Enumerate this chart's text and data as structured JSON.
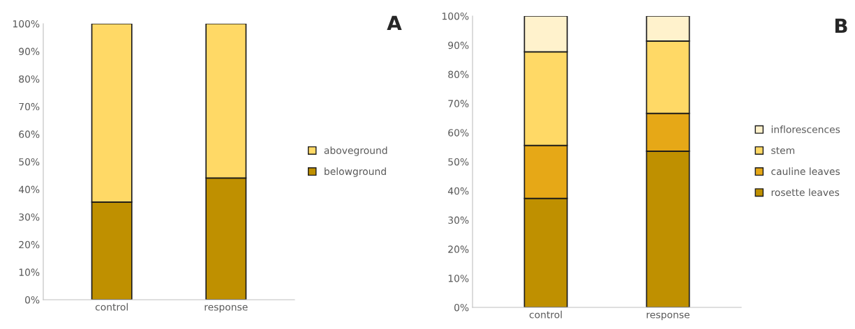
{
  "chart_data": [
    {
      "type": "bar",
      "stacked": true,
      "categories": [
        "control",
        "response"
      ],
      "ylim": [
        0,
        100
      ],
      "yticks": [
        {
          "value": 0,
          "label": "0%"
        },
        {
          "value": 10,
          "label": "10%"
        },
        {
          "value": 20,
          "label": "20%"
        },
        {
          "value": 30,
          "label": "30%"
        },
        {
          "value": 40,
          "label": "40%"
        },
        {
          "value": 50,
          "label": "50%"
        },
        {
          "value": 60,
          "label": "60%"
        },
        {
          "value": 70,
          "label": "70%"
        },
        {
          "value": 80,
          "label": "80%"
        },
        {
          "value": 90,
          "label": "90%"
        },
        {
          "value": 100,
          "label": "100%"
        }
      ],
      "series": [
        {
          "name": "belowground",
          "color": "#bf9000",
          "values": [
            35.4,
            44.1
          ]
        },
        {
          "name": "aboveground",
          "color": "#ffd966",
          "values": [
            64.6,
            55.9
          ]
        }
      ],
      "legend": "right",
      "grid": false,
      "annotations": [
        "A"
      ]
    },
    {
      "type": "bar",
      "stacked": true,
      "categories": [
        "control",
        "response"
      ],
      "ylim": [
        0,
        100
      ],
      "yticks": [
        {
          "value": 0,
          "label": "0%"
        },
        {
          "value": 10,
          "label": "10%"
        },
        {
          "value": 20,
          "label": "20%"
        },
        {
          "value": 30,
          "label": "30%"
        },
        {
          "value": 40,
          "label": "40%"
        },
        {
          "value": 50,
          "label": "50%"
        },
        {
          "value": 60,
          "label": "60%"
        },
        {
          "value": 70,
          "label": "70%"
        },
        {
          "value": 80,
          "label": "80%"
        },
        {
          "value": 90,
          "label": "90%"
        },
        {
          "value": 100,
          "label": "100%"
        }
      ],
      "series": [
        {
          "name": "rosette leaves",
          "color": "#bf9000",
          "values": [
            37.4,
            53.6
          ]
        },
        {
          "name": "cauline leaves",
          "color": "#e6a817",
          "values": [
            18.2,
            13.0
          ]
        },
        {
          "name": "stem",
          "color": "#ffd966",
          "values": [
            32.1,
            24.8
          ]
        },
        {
          "name": "inflorescences",
          "color": "#fff2cc",
          "values": [
            12.3,
            8.6
          ]
        }
      ],
      "legend": "right",
      "grid": false,
      "annotations": [
        "B"
      ]
    }
  ]
}
